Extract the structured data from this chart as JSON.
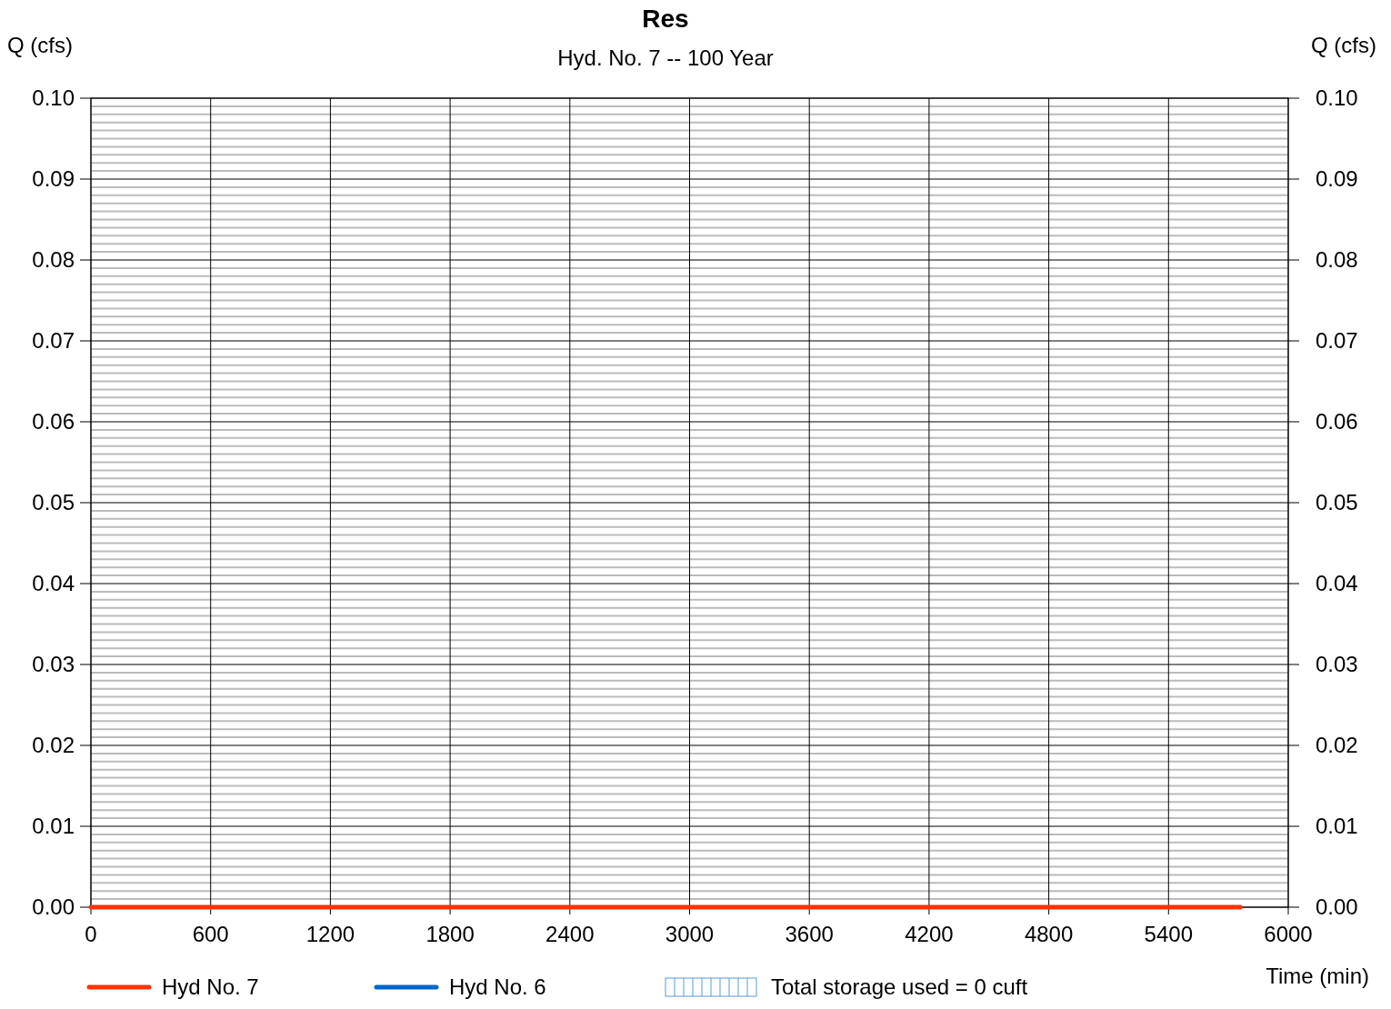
{
  "chart_data": {
    "type": "line",
    "title": "Res",
    "subtitle": "Hyd. No. 7 -- 100 Year",
    "xlabel": "Time (min)",
    "ylabel": "Q (cfs)",
    "y2label": "Q (cfs)",
    "xlim": [
      0,
      6000
    ],
    "xticks": [
      0,
      600,
      1200,
      1800,
      2400,
      3000,
      3600,
      4200,
      4800,
      5400,
      6000
    ],
    "ylim": [
      0,
      0.1
    ],
    "yticks": [
      {
        "value": 0,
        "label": "0.00"
      },
      {
        "value": 0.01,
        "label": "0.01"
      },
      {
        "value": 0.02,
        "label": "0.02"
      },
      {
        "value": 0.03,
        "label": "0.03"
      },
      {
        "value": 0.04,
        "label": "0.04"
      },
      {
        "value": 0.05,
        "label": "0.05"
      },
      {
        "value": 0.06,
        "label": "0.06"
      },
      {
        "value": 0.07,
        "label": "0.07"
      },
      {
        "value": 0.08,
        "label": "0.08"
      },
      {
        "value": 0.09,
        "label": "0.09"
      },
      {
        "value": 0.1,
        "label": "0.10"
      }
    ],
    "y2lim": [
      0,
      0.1
    ],
    "y2ticks": [
      {
        "value": 0,
        "label": "0.00"
      },
      {
        "value": 0.01,
        "label": "0.01"
      },
      {
        "value": 0.02,
        "label": "0.02"
      },
      {
        "value": 0.03,
        "label": "0.03"
      },
      {
        "value": 0.04,
        "label": "0.04"
      },
      {
        "value": 0.05,
        "label": "0.05"
      },
      {
        "value": 0.06,
        "label": "0.06"
      },
      {
        "value": 0.07,
        "label": "0.07"
      },
      {
        "value": 0.08,
        "label": "0.08"
      },
      {
        "value": 0.09,
        "label": "0.09"
      },
      {
        "value": 0.1,
        "label": "0.10"
      }
    ],
    "grid": true,
    "legend": "bottom",
    "marker": "none",
    "line_style": "solid",
    "series": [
      {
        "name": "Hyd No. 7",
        "color": "#ff3300",
        "x": [
          0,
          5760
        ],
        "values": [
          0,
          0
        ]
      },
      {
        "name": "Hyd No. 6",
        "color": "#0066cc"
      },
      {
        "name": "Total storage used = 0 cuft",
        "type": "area",
        "color": "#5b9bd5"
      }
    ]
  }
}
